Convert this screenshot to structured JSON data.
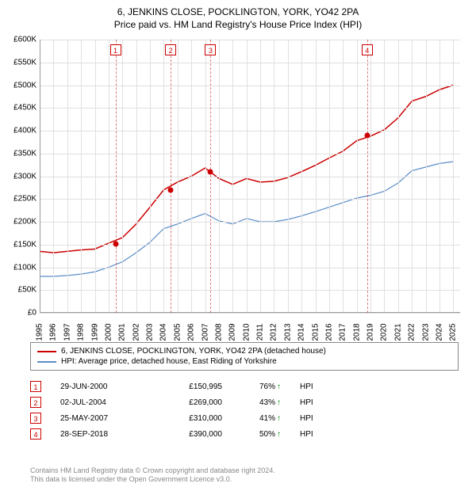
{
  "title_line1": "6, JENKINS CLOSE, POCKLINGTON, YORK, YO42 2PA",
  "title_line2": "Price paid vs. HM Land Registry's House Price Index (HPI)",
  "chart": {
    "type": "line",
    "x_years": [
      1995,
      1996,
      1997,
      1998,
      1999,
      2000,
      2001,
      2002,
      2003,
      2004,
      2005,
      2006,
      2007,
      2008,
      2009,
      2010,
      2011,
      2012,
      2013,
      2014,
      2015,
      2016,
      2017,
      2018,
      2019,
      2020,
      2021,
      2022,
      2023,
      2024,
      2025
    ],
    "xlim": [
      1995,
      2025.5
    ],
    "ylim": [
      0,
      600000
    ],
    "ytick_step": 50000,
    "yticklabels": [
      "£0",
      "£50K",
      "£100K",
      "£150K",
      "£200K",
      "£250K",
      "£300K",
      "£350K",
      "£400K",
      "£450K",
      "£500K",
      "£550K",
      "£600K"
    ],
    "background_color": "#ffffff",
    "grid_color": "#e0e0e0",
    "axis_color": "#999999",
    "series": [
      {
        "name": "price_paid",
        "label": "6, JENKINS CLOSE, POCKLINGTON, YORK, YO42 2PA (detached house)",
        "color": "#cc0000",
        "line_width": 1.5,
        "data": [
          [
            1995,
            135000
          ],
          [
            1996,
            132000
          ],
          [
            1997,
            135000
          ],
          [
            1998,
            138000
          ],
          [
            1999,
            140000
          ],
          [
            2000,
            153000
          ],
          [
            2001,
            165000
          ],
          [
            2002,
            195000
          ],
          [
            2003,
            232000
          ],
          [
            2004,
            270000
          ],
          [
            2005,
            287000
          ],
          [
            2006,
            300000
          ],
          [
            2007,
            318000
          ],
          [
            2008,
            295000
          ],
          [
            2009,
            282000
          ],
          [
            2010,
            295000
          ],
          [
            2011,
            287000
          ],
          [
            2012,
            289000
          ],
          [
            2013,
            297000
          ],
          [
            2014,
            310000
          ],
          [
            2015,
            324000
          ],
          [
            2016,
            340000
          ],
          [
            2017,
            355000
          ],
          [
            2018,
            378000
          ],
          [
            2019,
            388000
          ],
          [
            2020,
            402000
          ],
          [
            2021,
            428000
          ],
          [
            2022,
            465000
          ],
          [
            2023,
            475000
          ],
          [
            2024,
            490000
          ],
          [
            2025,
            500000
          ]
        ]
      },
      {
        "name": "hpi",
        "label": "HPI: Average price, detached house, East Riding of Yorkshire",
        "color": "#5b8cc7",
        "line_width": 1.2,
        "data": [
          [
            1995,
            80000
          ],
          [
            1996,
            80000
          ],
          [
            1997,
            82000
          ],
          [
            1998,
            85000
          ],
          [
            1999,
            90000
          ],
          [
            2000,
            100000
          ],
          [
            2001,
            112000
          ],
          [
            2002,
            132000
          ],
          [
            2003,
            155000
          ],
          [
            2004,
            185000
          ],
          [
            2005,
            195000
          ],
          [
            2006,
            207000
          ],
          [
            2007,
            218000
          ],
          [
            2008,
            202000
          ],
          [
            2009,
            195000
          ],
          [
            2010,
            207000
          ],
          [
            2011,
            200000
          ],
          [
            2012,
            200000
          ],
          [
            2013,
            205000
          ],
          [
            2014,
            213000
          ],
          [
            2015,
            222000
          ],
          [
            2016,
            232000
          ],
          [
            2017,
            242000
          ],
          [
            2018,
            252000
          ],
          [
            2019,
            258000
          ],
          [
            2020,
            267000
          ],
          [
            2021,
            285000
          ],
          [
            2022,
            312000
          ],
          [
            2023,
            320000
          ],
          [
            2024,
            328000
          ],
          [
            2025,
            332000
          ]
        ]
      }
    ],
    "markers": [
      {
        "n": "1",
        "year": 2000.5,
        "value": 150995
      },
      {
        "n": "2",
        "year": 2004.5,
        "value": 269000
      },
      {
        "n": "3",
        "year": 2007.4,
        "value": 310000
      },
      {
        "n": "4",
        "year": 2018.75,
        "value": 390000
      }
    ],
    "marker_line_color": "#cc4444",
    "marker_box_border": "#cc0000"
  },
  "legend": {
    "items": [
      {
        "color": "#cc0000",
        "label": "6, JENKINS CLOSE, POCKLINGTON, YORK, YO42 2PA (detached house)"
      },
      {
        "color": "#5b8cc7",
        "label": "HPI: Average price, detached house, East Riding of Yorkshire"
      }
    ]
  },
  "transactions": [
    {
      "n": "1",
      "date": "29-JUN-2000",
      "price": "£150,995",
      "pct": "76%",
      "suffix": "HPI"
    },
    {
      "n": "2",
      "date": "02-JUL-2004",
      "price": "£269,000",
      "pct": "43%",
      "suffix": "HPI"
    },
    {
      "n": "3",
      "date": "25-MAY-2007",
      "price": "£310,000",
      "pct": "41%",
      "suffix": "HPI"
    },
    {
      "n": "4",
      "date": "28-SEP-2018",
      "price": "£390,000",
      "pct": "50%",
      "suffix": "HPI"
    }
  ],
  "footer_line1": "Contains HM Land Registry data © Crown copyright and database right 2024.",
  "footer_line2": "This data is licensed under the Open Government Licence v3.0."
}
